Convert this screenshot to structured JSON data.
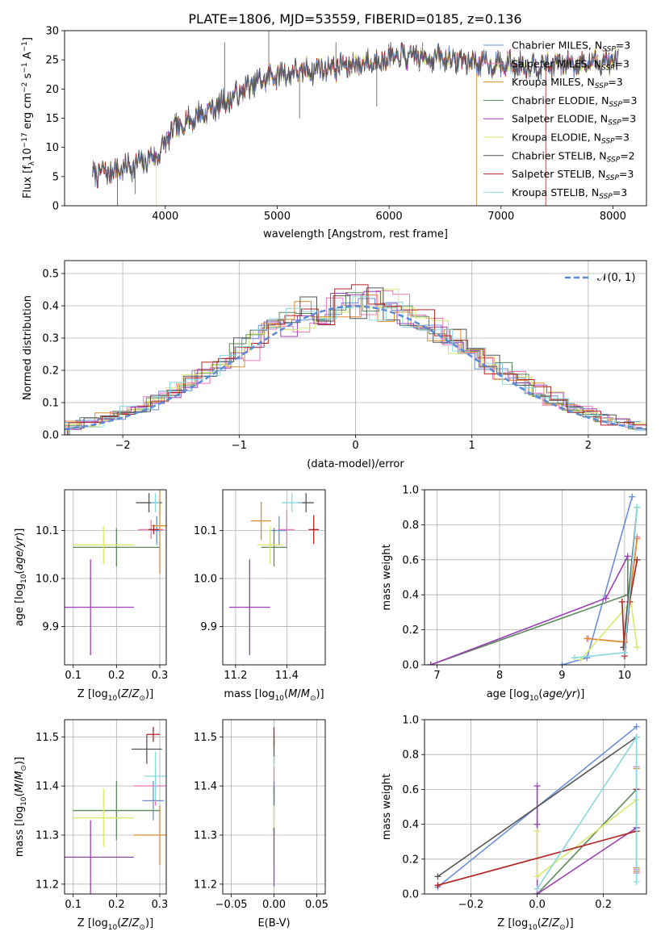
{
  "figure_title": "PLATE=1806, MJD=53559, FIBERID=0185, z=0.136",
  "colors": {
    "Chabrier MILES": "#6a8fd8",
    "Salpeter MILES": "#ee77b8",
    "Kroupa MILES": "#e08a2a",
    "Chabrier ELODIE": "#5a8a5a",
    "Salpeter ELODIE": "#9b3fb8",
    "Kroupa ELODIE": "#d9e86a",
    "Chabrier STELIB": "#555555",
    "Salpeter STELIB": "#b22222",
    "Kroupa STELIB": "#88d8e0",
    "normal_curve": "#5b8ad6",
    "grid": "#b0b0b0"
  },
  "chart_data": [
    {
      "id": "spectrum",
      "type": "line",
      "xlabel": "wavelength [Angstrom, rest frame]",
      "ylabel": "Flux [f_λ 10^-17 erg cm^-2 s^-1 A^-1]",
      "xlim": [
        3100,
        8300
      ],
      "ylim": [
        0,
        30
      ],
      "xticks": [
        4000,
        5000,
        6000,
        7000,
        8000
      ],
      "yticks": [
        0,
        5,
        10,
        15,
        20,
        25,
        30
      ],
      "grid": false,
      "legend_position": "top-right",
      "legend": [
        {
          "main": "Chabrier MILES, N",
          "sub": "SSP",
          "tail": "=3"
        },
        {
          "main": "Salpeter MILES, N",
          "sub": "SSP",
          "tail": "=3"
        },
        {
          "main": "Kroupa MILES, N",
          "sub": "SSP",
          "tail": "=3"
        },
        {
          "main": "Chabrier ELODIE, N",
          "sub": "SSP",
          "tail": "=3"
        },
        {
          "main": "Salpeter ELODIE, N",
          "sub": "SSP",
          "tail": "=3"
        },
        {
          "main": "Kroupa ELODIE, N",
          "sub": "SSP",
          "tail": "=3"
        },
        {
          "main": "Chabrier STELIB, N",
          "sub": "SSP",
          "tail": "=2"
        },
        {
          "main": "Salpeter STELIB, N",
          "sub": "SSP",
          "tail": "=3"
        },
        {
          "main": "Kroupa STELIB, N",
          "sub": "SSP",
          "tail": "=3"
        }
      ],
      "continuum": [
        [
          3350,
          5.6
        ],
        [
          3500,
          5.8
        ],
        [
          3650,
          6.5
        ],
        [
          3800,
          7.5
        ],
        [
          3950,
          9.0
        ],
        [
          4050,
          12.5
        ],
        [
          4200,
          14.5
        ],
        [
          4400,
          16.5
        ],
        [
          4600,
          18.5
        ],
        [
          4800,
          21.0
        ],
        [
          5000,
          22.5
        ],
        [
          5200,
          23.0
        ],
        [
          5400,
          23.5
        ],
        [
          5600,
          24.0
        ],
        [
          5800,
          24.5
        ],
        [
          6000,
          25.3
        ],
        [
          6200,
          25.6
        ],
        [
          6400,
          25.3
        ],
        [
          6600,
          25.0
        ],
        [
          6800,
          24.5
        ],
        [
          7000,
          24.2
        ],
        [
          7200,
          24.0
        ],
        [
          7500,
          24.2
        ],
        [
          7800,
          24.5
        ],
        [
          8050,
          24.8
        ]
      ],
      "spikes": [
        [
          4925,
          30
        ],
        [
          5525,
          28
        ],
        [
          5890,
          17
        ],
        [
          5200,
          15
        ],
        [
          4100,
          16
        ],
        [
          6300,
          28
        ],
        [
          4530,
          28
        ],
        [
          4860,
          20
        ],
        [
          3730,
          2
        ],
        [
          5870,
          26
        ]
      ],
      "drops": [
        {
          "x": 3570,
          "series": "Salpeter STELIB"
        },
        {
          "x": 3920,
          "series": "Kroupa ELODIE"
        },
        {
          "x": 6780,
          "series": "Kroupa MILES"
        },
        {
          "x": 7400,
          "series": "Salpeter STELIB"
        }
      ]
    },
    {
      "id": "residuals",
      "type": "step",
      "xlabel": "(data-model)/error",
      "ylabel": "Normed distribution",
      "xlim": [
        -2.5,
        2.5
      ],
      "ylim": [
        0,
        0.54
      ],
      "xticks": [
        -2,
        -1,
        0,
        1,
        2
      ],
      "yticks": [
        0.0,
        0.1,
        0.2,
        0.3,
        0.4,
        0.5
      ],
      "grid": true,
      "legend_position": "top-right",
      "legend": [
        {
          "label": "𝒩(0, 1)"
        }
      ],
      "bins": 35
    },
    {
      "id": "age_vs_Z",
      "type": "errorbar",
      "xlabel": "Z [log₁₀(Z/Z☉)]",
      "ylabel": "age  [log₁₀(age/yr)]",
      "xlim": [
        0.08,
        0.315
      ],
      "ylim": [
        9.82,
        10.185
      ],
      "xticks": [
        0.1,
        0.2,
        0.3
      ],
      "yticks": [
        9.9,
        10.0,
        10.1
      ],
      "grid": true,
      "points": [
        {
          "series": "Chabrier MILES",
          "x": 0.293,
          "xerr": 0.01,
          "y": 10.1,
          "yerr": 0.03
        },
        {
          "series": "Salpeter MILES",
          "x": 0.28,
          "xerr": 0.03,
          "y": 10.102,
          "yerr": 0.02
        },
        {
          "series": "Kroupa MILES",
          "x": 0.3,
          "xerr": 0.02,
          "y": 10.11,
          "yerr": 0.1
        },
        {
          "series": "Chabrier ELODIE",
          "x": 0.2,
          "xerr": 0.1,
          "y": 10.065,
          "yerr": 0.04
        },
        {
          "series": "Salpeter ELODIE",
          "x": 0.14,
          "xerr": 0.1,
          "y": 9.94,
          "yerr": 0.1
        },
        {
          "series": "Kroupa ELODIE",
          "x": 0.17,
          "xerr": 0.07,
          "y": 10.07,
          "yerr": 0.04
        },
        {
          "series": "Chabrier STELIB",
          "x": 0.275,
          "xerr": 0.03,
          "y": 10.158,
          "yerr": 0.02
        },
        {
          "series": "Salpeter STELIB",
          "x": 0.286,
          "xerr": 0.012,
          "y": 10.102,
          "yerr": 0.01
        },
        {
          "series": "Kroupa STELIB",
          "x": 0.29,
          "xerr": 0.01,
          "y": 10.158,
          "yerr": 0.02
        }
      ]
    },
    {
      "id": "age_vs_mass",
      "type": "errorbar",
      "xlabel": "mass [log₁₀(M/M☉)]",
      "ylabel": "",
      "xlim": [
        11.15,
        11.55
      ],
      "ylim": [
        9.82,
        10.185
      ],
      "xticks": [
        11.2,
        11.4
      ],
      "yticks": [
        9.9,
        10.0,
        10.1
      ],
      "grid": true,
      "points": [
        {
          "series": "Chabrier MILES",
          "x": 11.37,
          "xerr": 0.03,
          "y": 10.1,
          "yerr": 0.03
        },
        {
          "series": "Salpeter MILES",
          "x": 11.4,
          "xerr": 0.03,
          "y": 10.102,
          "yerr": 0.04
        },
        {
          "series": "Kroupa MILES",
          "x": 11.3,
          "xerr": 0.04,
          "y": 10.12,
          "yerr": 0.04
        },
        {
          "series": "Chabrier ELODIE",
          "x": 11.35,
          "xerr": 0.05,
          "y": 10.065,
          "yerr": 0.04
        },
        {
          "series": "Salpeter ELODIE",
          "x": 11.255,
          "xerr": 0.08,
          "y": 9.94,
          "yerr": 0.1
        },
        {
          "series": "Kroupa ELODIE",
          "x": 11.335,
          "xerr": 0.05,
          "y": 10.07,
          "yerr": 0.04
        },
        {
          "series": "Chabrier STELIB",
          "x": 11.475,
          "xerr": 0.03,
          "y": 10.158,
          "yerr": 0.02
        },
        {
          "series": "Salpeter STELIB",
          "x": 11.505,
          "xerr": 0.02,
          "y": 10.102,
          "yerr": 0.03
        },
        {
          "series": "Kroupa STELIB",
          "x": 11.42,
          "xerr": 0.04,
          "y": 10.158,
          "yerr": 0.02
        }
      ]
    },
    {
      "id": "weight_vs_age",
      "type": "line",
      "xlabel": "age  [log₁₀(age/yr)]",
      "ylabel": "mass weight",
      "xlim": [
        6.8,
        10.35
      ],
      "ylim": [
        0,
        1.0
      ],
      "xticks": [
        7,
        8,
        9,
        10
      ],
      "yticks": [
        0.0,
        0.2,
        0.4,
        0.6,
        0.8,
        1.0
      ],
      "grid": true,
      "series": [
        {
          "name": "Chabrier MILES",
          "x": [
            9.0,
            9.4,
            10.12
          ],
          "y": [
            0.0,
            0.04,
            0.96
          ]
        },
        {
          "name": "Salpeter MILES",
          "x": [
            9.42,
            10.0,
            10.2
          ],
          "y": [
            0.15,
            0.13,
            0.73
          ]
        },
        {
          "name": "Kroupa MILES",
          "x": [
            9.4,
            10.0,
            10.2
          ],
          "y": [
            0.15,
            0.13,
            0.72
          ]
        },
        {
          "name": "Chabrier ELODIE",
          "x": [
            6.9,
            10.05,
            10.05
          ],
          "y": [
            0.0,
            0.4,
            0.6
          ]
        },
        {
          "name": "Salpeter ELODIE",
          "x": [
            6.9,
            9.7,
            10.05
          ],
          "y": [
            0.0,
            0.38,
            0.62
          ]
        },
        {
          "name": "Kroupa ELODIE",
          "x": [
            9.3,
            10.1,
            10.2
          ],
          "y": [
            0.03,
            0.36,
            0.1
          ]
        },
        {
          "name": "Chabrier STELIB",
          "x": [
            9.98,
            10.2
          ],
          "y": [
            0.1,
            0.9
          ]
        },
        {
          "name": "Salpeter STELIB",
          "x": [
            9.96,
            10.0,
            10.08,
            10.2
          ],
          "y": [
            0.36,
            0.05,
            0.36,
            0.6
          ]
        },
        {
          "name": "Kroupa STELIB",
          "x": [
            9.2,
            10.0,
            10.2
          ],
          "y": [
            0.04,
            0.07,
            0.9
          ]
        }
      ]
    },
    {
      "id": "mass_vs_Z",
      "type": "errorbar",
      "xlabel": "Z [log₁₀(Z/Z☉)]",
      "ylabel": "mass [log₁₀(M/M☉)]",
      "xlim": [
        0.08,
        0.315
      ],
      "ylim": [
        11.18,
        11.535
      ],
      "xticks": [
        0.1,
        0.2,
        0.3
      ],
      "yticks": [
        11.2,
        11.3,
        11.4,
        11.5
      ],
      "grid": true,
      "points": [
        {
          "series": "Chabrier MILES",
          "x": 0.285,
          "xerr": 0.025,
          "y": 11.37,
          "yerr": 0.04
        },
        {
          "series": "Salpeter MILES",
          "x": 0.29,
          "xerr": 0.05,
          "y": 11.4,
          "yerr": 0.04
        },
        {
          "series": "Kroupa MILES",
          "x": 0.3,
          "xerr": 0.06,
          "y": 11.3,
          "yerr": 0.06
        },
        {
          "series": "Chabrier ELODIE",
          "x": 0.2,
          "xerr": 0.1,
          "y": 11.35,
          "yerr": 0.06
        },
        {
          "series": "Salpeter ELODIE",
          "x": 0.14,
          "xerr": 0.1,
          "y": 11.255,
          "yerr": 0.075
        },
        {
          "series": "Kroupa ELODIE",
          "x": 0.17,
          "xerr": 0.07,
          "y": 11.335,
          "yerr": 0.06
        },
        {
          "series": "Chabrier STELIB",
          "x": 0.27,
          "xerr": 0.035,
          "y": 11.475,
          "yerr": 0.03
        },
        {
          "series": "Salpeter STELIB",
          "x": 0.285,
          "xerr": 0.015,
          "y": 11.505,
          "yerr": 0.015
        },
        {
          "series": "Kroupa STELIB",
          "x": 0.29,
          "xerr": 0.025,
          "y": 11.42,
          "yerr": 0.05
        }
      ]
    },
    {
      "id": "mass_vs_ebv",
      "type": "errorbar",
      "xlabel": "E(B-V)",
      "ylabel": "",
      "xlim": [
        -0.06,
        0.06
      ],
      "ylim": [
        11.18,
        11.535
      ],
      "xticks": [
        -0.05,
        0.0,
        0.05
      ],
      "yticks": [
        11.2,
        11.3,
        11.4,
        11.5
      ],
      "grid": true,
      "points": [
        {
          "series": "Salpeter STELIB",
          "x": 0.0,
          "xerr": 0.0,
          "y": 11.5,
          "yerr": 0.02
        },
        {
          "series": "Chabrier STELIB",
          "x": 0.0,
          "xerr": 0.0,
          "y": 11.475,
          "yerr": 0.03
        },
        {
          "series": "Kroupa STELIB",
          "x": 0.0,
          "xerr": 0.0,
          "y": 11.42,
          "yerr": 0.04
        },
        {
          "series": "Salpeter MILES",
          "x": 0.0,
          "xerr": 0.0,
          "y": 11.4,
          "yerr": 0.04
        },
        {
          "series": "Chabrier MILES",
          "x": 0.0,
          "xerr": 0.0,
          "y": 11.37,
          "yerr": 0.04
        },
        {
          "series": "Chabrier ELODIE",
          "x": 0.0,
          "xerr": 0.0,
          "y": 11.35,
          "yerr": 0.05
        },
        {
          "series": "Kroupa ELODIE",
          "x": 0.0,
          "xerr": 0.0,
          "y": 11.3,
          "yerr": 0.06
        },
        {
          "series": "Salpeter ELODIE",
          "x": 0.0,
          "xerr": 0.0,
          "y": 11.255,
          "yerr": 0.06
        }
      ]
    },
    {
      "id": "weight_vs_Z",
      "type": "line",
      "xlabel": "Z [log₁₀(Z/Z☉)]",
      "ylabel": "mass weight",
      "xlim": [
        -0.34,
        0.33
      ],
      "ylim": [
        0,
        1.0
      ],
      "xticks": [
        -0.2,
        0.0,
        0.2
      ],
      "yticks": [
        0.0,
        0.2,
        0.4,
        0.6,
        0.8,
        1.0
      ],
      "grid": true,
      "series": [
        {
          "name": "Chabrier MILES",
          "x": [
            -0.3,
            0.3
          ],
          "y": [
            0.04,
            0.96
          ]
        },
        {
          "name": "Salpeter MILES",
          "x": [
            0.3,
            0.3,
            0.3
          ],
          "y": [
            0.14,
            0.12,
            0.73
          ]
        },
        {
          "name": "Kroupa MILES",
          "x": [
            0.3,
            0.3,
            0.3
          ],
          "y": [
            0.15,
            0.13,
            0.72
          ]
        },
        {
          "name": "Chabrier ELODIE",
          "x": [
            0.0,
            0.3
          ],
          "y": [
            0.0,
            0.6
          ]
        },
        {
          "name": "Salpeter ELODIE",
          "x": [
            0.0,
            0.0,
            0.0,
            0.3
          ],
          "y": [
            0.62,
            0.4,
            0.0,
            0.38
          ]
        },
        {
          "name": "Kroupa ELODIE",
          "x": [
            0.0,
            0.0,
            0.3
          ],
          "y": [
            0.36,
            0.1,
            0.54
          ]
        },
        {
          "name": "Chabrier STELIB",
          "x": [
            -0.3,
            0.3
          ],
          "y": [
            0.1,
            0.9
          ]
        },
        {
          "name": "Salpeter STELIB",
          "x": [
            -0.3,
            0.3,
            0.3
          ],
          "y": [
            0.05,
            0.36,
            0.6
          ]
        },
        {
          "name": "Kroupa STELIB",
          "x": [
            0.0,
            0.3,
            0.3
          ],
          "y": [
            0.03,
            0.9,
            0.07
          ]
        }
      ]
    }
  ]
}
